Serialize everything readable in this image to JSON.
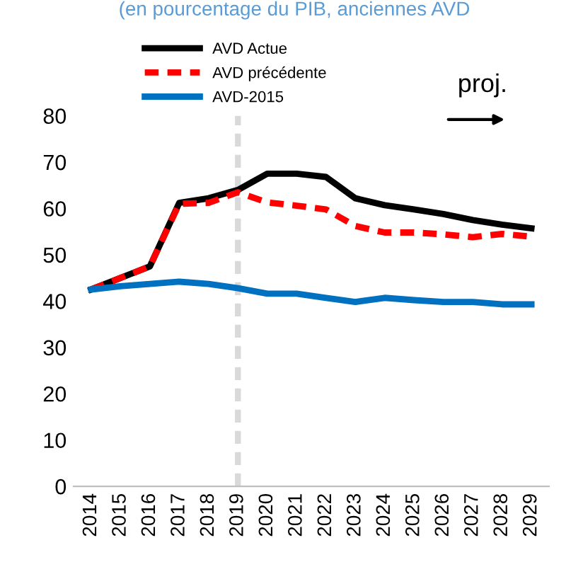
{
  "chart_data": {
    "type": "line",
    "subtitle": "(en pourcentage du PIB, anciennes AVD",
    "categories": [
      "2014",
      "2015",
      "2016",
      "2017",
      "2018",
      "2019",
      "2020",
      "2021",
      "2022",
      "2023",
      "2024",
      "2025",
      "2026",
      "2027",
      "2028",
      "2029"
    ],
    "series": [
      {
        "name": "AVD Actue",
        "color": "#000000",
        "line_style": "solid",
        "values": [
          42.5,
          45,
          47.5,
          61.2,
          62.2,
          64,
          67.5,
          67.5,
          66.8,
          62.2,
          60.7,
          59.8,
          58.8,
          57.5,
          56.5,
          55.7
        ]
      },
      {
        "name": "AVD précédente",
        "color": "#ff0000",
        "line_style": "dashed",
        "values": [
          42.5,
          45,
          47.5,
          61,
          61.2,
          63.5,
          61.3,
          60.6,
          59.8,
          56.2,
          54.8,
          54.8,
          54.4,
          53.8,
          54.5,
          53.9
        ]
      },
      {
        "name": "AVD-2015",
        "color": "#0070c0",
        "line_style": "solid",
        "values": [
          42.5,
          43.2,
          43.7,
          44.2,
          43.7,
          42.8,
          41.6,
          41.6,
          40.7,
          39.8,
          40.7,
          40.2,
          39.8,
          39.8,
          39.3,
          39.3
        ]
      }
    ],
    "ylim": [
      0,
      80
    ],
    "yticks": [
      0,
      10,
      20,
      30,
      40,
      50,
      60,
      70,
      80
    ],
    "ref_lines": [
      {
        "axis": "x",
        "value": "2019",
        "color": "#d9d9d9",
        "line_style": "dashed"
      }
    ],
    "annotations": [
      "proj."
    ],
    "legend": "top left",
    "grid": false,
    "marker": "none"
  }
}
